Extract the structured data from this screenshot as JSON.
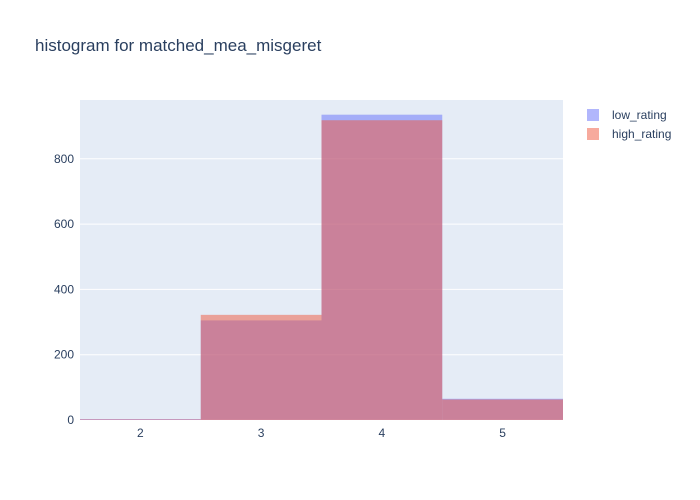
{
  "chart_data": {
    "type": "bar",
    "title": "histogram for matched_mea_misgeret",
    "xlabel": "",
    "ylabel": "",
    "categories": [
      2,
      3,
      4,
      5
    ],
    "x_tick_labels": [
      "2",
      "3",
      "4",
      "5"
    ],
    "y_ticks": [
      0,
      200,
      400,
      600,
      800
    ],
    "y_tick_labels": [
      "0",
      "200",
      "400",
      "600",
      "800"
    ],
    "xlim": [
      1.5,
      5.5
    ],
    "ylim": [
      0,
      980
    ],
    "barmode": "overlay",
    "grid": true,
    "legend_position": "top-right",
    "series": [
      {
        "name": "low_rating",
        "values": [
          3,
          305,
          935,
          65
        ],
        "color": "#636efa"
      },
      {
        "name": "high_rating",
        "values": [
          2,
          322,
          918,
          63
        ],
        "color": "#ef553b"
      }
    ],
    "plot_background": "#e5ecf6",
    "text_color": "#2a3f5f"
  }
}
